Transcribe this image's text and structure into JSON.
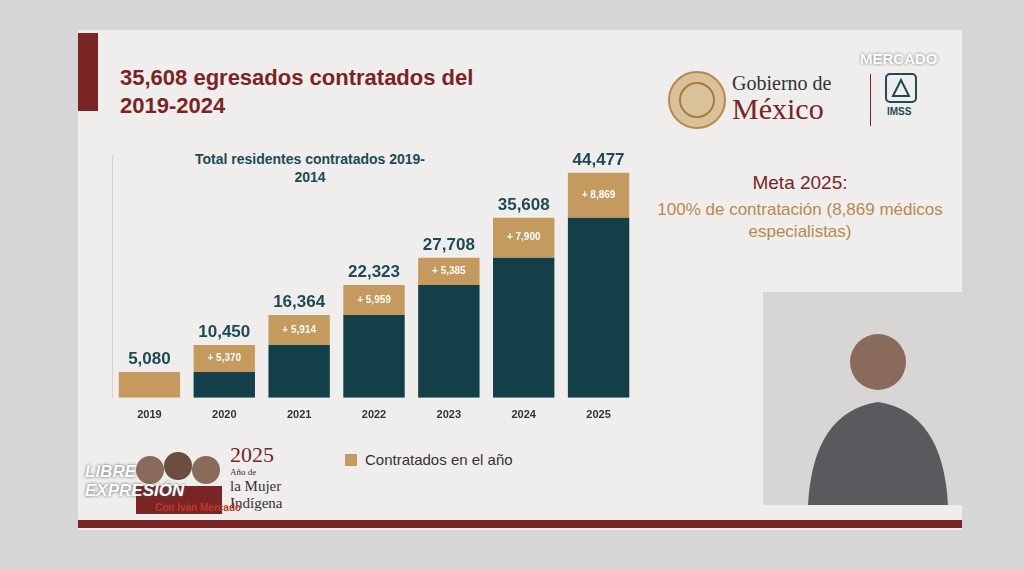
{
  "chart_data": {
    "type": "bar",
    "stacked": true,
    "title": "35,608 egresados contratados del 2019-2024",
    "subtitle": "Total residentes contratados 2019-2014",
    "categories": [
      "2019",
      "2020",
      "2021",
      "2022",
      "2023",
      "2024",
      "2025"
    ],
    "series": [
      {
        "color": "#123f48",
        "values": [
          0,
          5080,
          10450,
          16364,
          22323,
          27708,
          35608
        ]
      },
      {
        "name": "Contratados en el año",
        "color": "#c49a5e",
        "values": [
          5080,
          5370,
          5914,
          5959,
          5385,
          7900,
          8869
        ],
        "value_labels": [
          null,
          "+ 5,370",
          "+ 5,914",
          "+ 5,959",
          "+ 5,385",
          "+ 7,900",
          "+ 8,869"
        ]
      }
    ],
    "total_labels": [
      "5,080",
      "10,450",
      "16,364",
      "22,323",
      "27,708",
      "35,608",
      "44,477"
    ],
    "ylim": [
      0,
      48000
    ],
    "grid": false,
    "tick_labels": "x",
    "legend": "bottom",
    "data_labels": true
  },
  "page": {
    "goal_title": "Meta 2025:",
    "goal_text": "100% de contratación (8,869 médicos especialistas)",
    "logo_line1": "Gobierno de",
    "logo_line2": "México",
    "logo_imss": "IMSS",
    "year_logo": [
      "2025",
      "Año de",
      "la Mujer",
      "Indígena"
    ],
    "watermark": [
      "LIBRE",
      "EXPRESIÓN",
      "Con Iván Mercado"
    ],
    "corner_mark": "MERCADO"
  }
}
